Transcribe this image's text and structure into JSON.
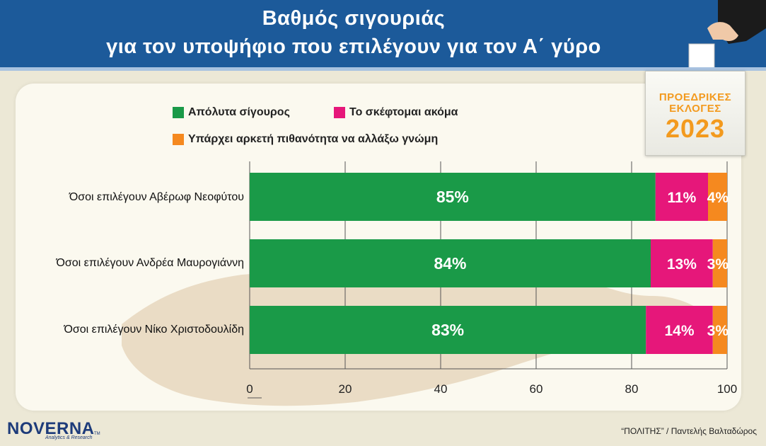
{
  "header": {
    "title_line1": "Βαθμός σιγουριάς",
    "title_line2": "για τον υποψήφιο που επιλέγουν για τον Α΄ γύρο"
  },
  "badge": {
    "line1": "ΠΡΟΕΔΡΙΚΕΣ",
    "line2": "ΕΚΛΟΓΕΣ",
    "year": "2023"
  },
  "footer": {
    "logo_text": "NOVERNA",
    "logo_tm": "TM",
    "logo_subtitle": "Analytics & Research",
    "credit": "“ΠΟΛΙΤΗΣ” / Παντελής Βαλταδώρος"
  },
  "chart_data": {
    "type": "bar",
    "orientation": "horizontal",
    "stacked": true,
    "categories": [
      "Όσοι επιλέγουν Αβέρωφ Νεοφύτου",
      "Όσοι επιλέγουν Ανδρέα Μαυρογιάννη",
      "Όσοι επιλέγουν Νίκο Χριστοδουλίδη"
    ],
    "series": [
      {
        "name": "Απόλυτα σίγουρος",
        "color": "#1a9a48",
        "values": [
          85,
          84,
          83
        ],
        "labels": [
          "85%",
          "84%",
          "83%"
        ]
      },
      {
        "name": "Το σκέφτομαι ακόμα",
        "color": "#e6177a",
        "values": [
          11,
          13,
          14
        ],
        "labels": [
          "11%",
          "13%",
          "14%"
        ]
      },
      {
        "name": "Υπάρχει αρκετή πιθανότητα να αλλάξω γνώμη",
        "color": "#f5891f",
        "values": [
          4,
          3,
          3
        ],
        "labels": [
          "4%",
          "3%",
          "3%"
        ]
      }
    ],
    "xlim": [
      0,
      100
    ],
    "xticks": [
      0,
      20,
      40,
      60,
      80,
      100
    ],
    "xtick_labels": [
      "0",
      "20",
      "40",
      "60",
      "80",
      "100"
    ],
    "grid": true,
    "legend_position": "top"
  }
}
